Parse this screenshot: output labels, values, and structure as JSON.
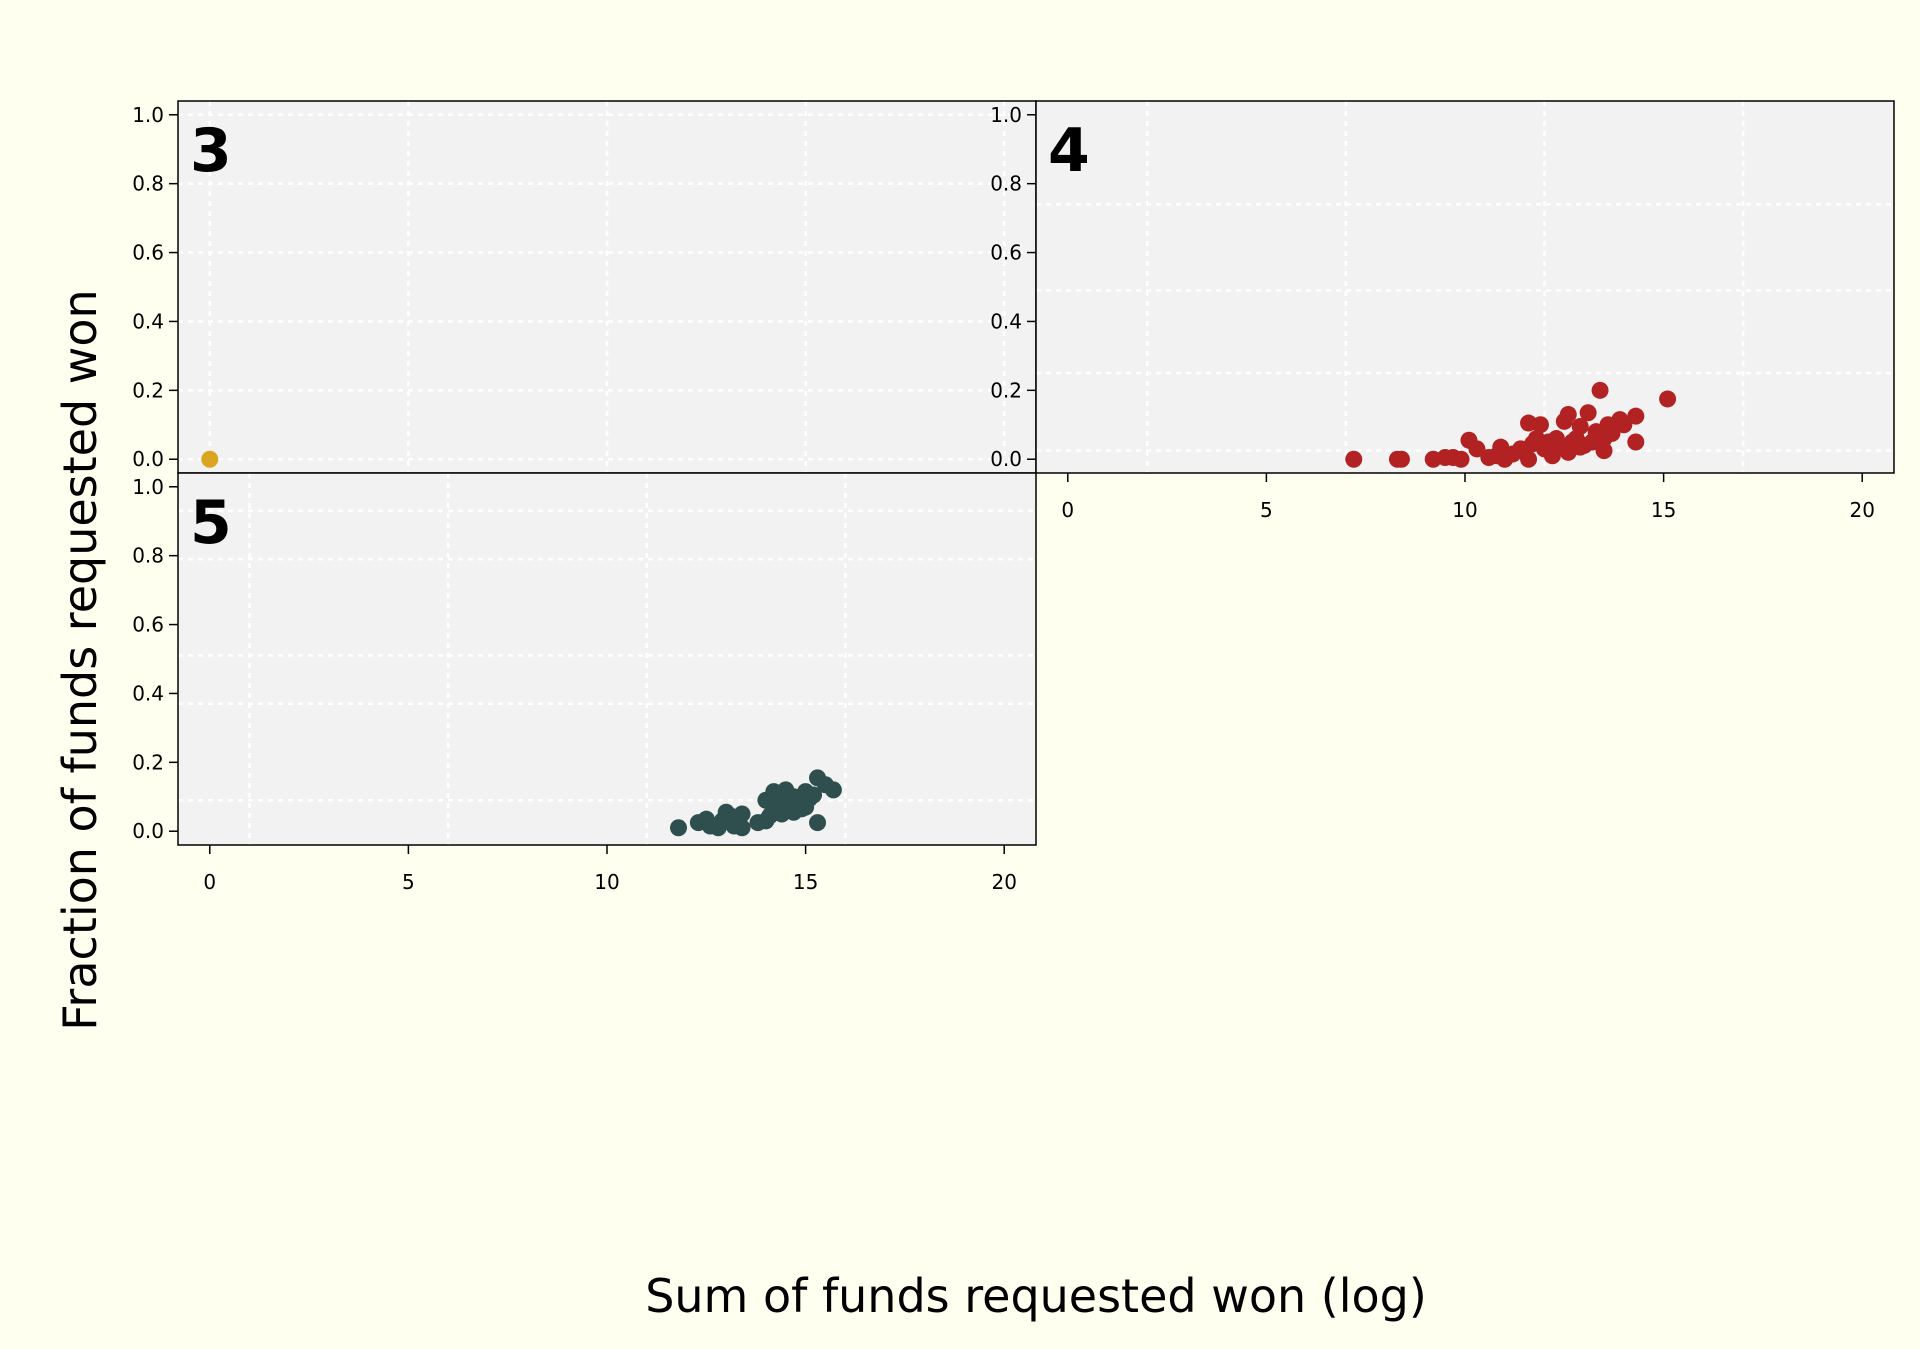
{
  "chart_data": {
    "type": "scatter",
    "xlabel": "Sum of funds requested won (log)",
    "ylabel": "Fraction of funds requested won",
    "xlim": [
      -0.8,
      20.8
    ],
    "ylim": [
      -0.04,
      1.04
    ],
    "x_ticks": [
      0,
      5,
      10,
      15,
      20
    ],
    "y_ticks": [
      0.0,
      0.2,
      0.4,
      0.6,
      0.8,
      1.0
    ],
    "grid": true,
    "panels": [
      {
        "label": "3",
        "color": "#daa520",
        "grid_x": [
          0,
          5,
          10,
          15,
          20
        ],
        "grid_y": [
          0.0,
          0.2,
          0.4,
          0.6,
          0.8,
          1.0
        ],
        "points": [
          [
            0.0,
            0.0
          ]
        ]
      },
      {
        "label": "4",
        "color": "#b22222",
        "grid_x": [
          2,
          7,
          12,
          17
        ],
        "grid_y": [
          0.025,
          0.25,
          0.49,
          0.74
        ],
        "points": [
          [
            7.2,
            0.0
          ],
          [
            8.3,
            0.0
          ],
          [
            8.4,
            0.0
          ],
          [
            9.2,
            0.0
          ],
          [
            9.5,
            0.005
          ],
          [
            9.7,
            0.005
          ],
          [
            9.9,
            0.0
          ],
          [
            10.1,
            0.055
          ],
          [
            10.3,
            0.03
          ],
          [
            10.6,
            0.005
          ],
          [
            10.8,
            0.01
          ],
          [
            10.9,
            0.035
          ],
          [
            11.0,
            0.0
          ],
          [
            11.2,
            0.015
          ],
          [
            11.4,
            0.03
          ],
          [
            11.5,
            0.02
          ],
          [
            11.6,
            0.105
          ],
          [
            11.7,
            0.045
          ],
          [
            11.8,
            0.06
          ],
          [
            11.9,
            0.1
          ],
          [
            12.0,
            0.03
          ],
          [
            12.1,
            0.05
          ],
          [
            12.2,
            0.01
          ],
          [
            12.3,
            0.06
          ],
          [
            12.4,
            0.04
          ],
          [
            12.5,
            0.11
          ],
          [
            12.6,
            0.13
          ],
          [
            12.7,
            0.05
          ],
          [
            12.8,
            0.06
          ],
          [
            12.9,
            0.095
          ],
          [
            13.0,
            0.04
          ],
          [
            13.1,
            0.135
          ],
          [
            13.2,
            0.05
          ],
          [
            13.3,
            0.08
          ],
          [
            13.4,
            0.2
          ],
          [
            13.5,
            0.06
          ],
          [
            13.6,
            0.1
          ],
          [
            13.7,
            0.075
          ],
          [
            13.9,
            0.115
          ],
          [
            14.0,
            0.1
          ],
          [
            14.3,
            0.05
          ],
          [
            14.3,
            0.125
          ],
          [
            15.1,
            0.175
          ],
          [
            12.6,
            0.02
          ],
          [
            12.9,
            0.035
          ],
          [
            13.5,
            0.025
          ],
          [
            11.6,
            0.0
          ],
          [
            12.2,
            0.02
          ]
        ]
      },
      {
        "label": "5",
        "color": "#2f4f4f",
        "grid_x": [
          1,
          6,
          11,
          16
        ],
        "grid_y": [
          0.09,
          0.37,
          0.51,
          0.79,
          0.93
        ],
        "points": [
          [
            11.8,
            0.01
          ],
          [
            12.3,
            0.025
          ],
          [
            12.5,
            0.035
          ],
          [
            12.6,
            0.015
          ],
          [
            12.8,
            0.01
          ],
          [
            12.9,
            0.03
          ],
          [
            13.0,
            0.055
          ],
          [
            13.1,
            0.045
          ],
          [
            13.2,
            0.015
          ],
          [
            13.3,
            0.03
          ],
          [
            13.4,
            0.05
          ],
          [
            13.4,
            0.01
          ],
          [
            13.8,
            0.025
          ],
          [
            14.0,
            0.09
          ],
          [
            14.0,
            0.03
          ],
          [
            14.1,
            0.045
          ],
          [
            14.2,
            0.115
          ],
          [
            14.3,
            0.075
          ],
          [
            14.4,
            0.05
          ],
          [
            14.5,
            0.12
          ],
          [
            14.5,
            0.09
          ],
          [
            14.6,
            0.065
          ],
          [
            14.7,
            0.1
          ],
          [
            14.7,
            0.055
          ],
          [
            14.8,
            0.08
          ],
          [
            14.9,
            0.065
          ],
          [
            15.0,
            0.115
          ],
          [
            15.0,
            0.07
          ],
          [
            15.1,
            0.095
          ],
          [
            15.2,
            0.105
          ],
          [
            15.3,
            0.155
          ],
          [
            15.3,
            0.025
          ],
          [
            15.5,
            0.135
          ],
          [
            15.7,
            0.12
          ]
        ]
      }
    ]
  }
}
